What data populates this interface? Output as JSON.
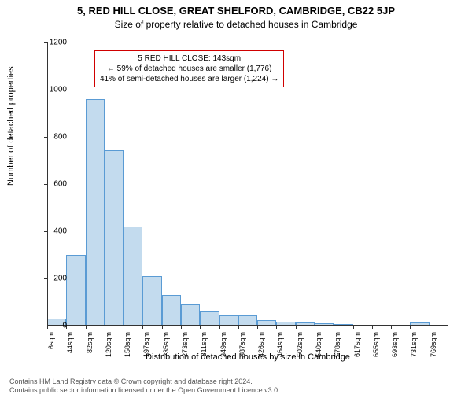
{
  "title_line1": "5, RED HILL CLOSE, GREAT SHELFORD, CAMBRIDGE, CB22 5JP",
  "title_line2": "Size of property relative to detached houses in Cambridge",
  "ylabel": "Number of detached properties",
  "xlabel": "Distribution of detached houses by size in Cambridge",
  "footer_line1": "Contains HM Land Registry data © Crown copyright and database right 2024.",
  "footer_line2": "Contains public sector information licensed under the Open Government Licence v3.0.",
  "chart": {
    "type": "histogram",
    "ylim": [
      0,
      1200
    ],
    "ytick_step": 200,
    "yticks": [
      0,
      200,
      400,
      600,
      800,
      1000,
      1200
    ],
    "xticks": [
      "6sqm",
      "44sqm",
      "82sqm",
      "120sqm",
      "158sqm",
      "197sqm",
      "235sqm",
      "273sqm",
      "311sqm",
      "349sqm",
      "387sqm",
      "426sqm",
      "464sqm",
      "502sqm",
      "540sqm",
      "578sqm",
      "617sqm",
      "655sqm",
      "693sqm",
      "731sqm",
      "769sqm"
    ],
    "values": [
      30,
      300,
      960,
      745,
      420,
      210,
      130,
      90,
      60,
      45,
      45,
      25,
      18,
      15,
      10,
      6,
      5,
      4,
      3,
      15,
      3
    ],
    "bar_color": "#c3dbee",
    "bar_border_color": "#5a9bd4",
    "background_color": "#ffffff",
    "axis_color": "#333333",
    "marker_value_sqm": 143,
    "marker_color": "#d00000",
    "annotation_border": "#d00000",
    "annotation": {
      "line1": "5 RED HILL CLOSE: 143sqm",
      "line2": "← 59% of detached houses are smaller (1,776)",
      "line3": "41% of semi-detached houses are larger (1,224) →"
    },
    "title_fontsize": 13,
    "subtitle_fontsize": 12,
    "label_fontsize": 11,
    "tick_fontsize": 10
  }
}
